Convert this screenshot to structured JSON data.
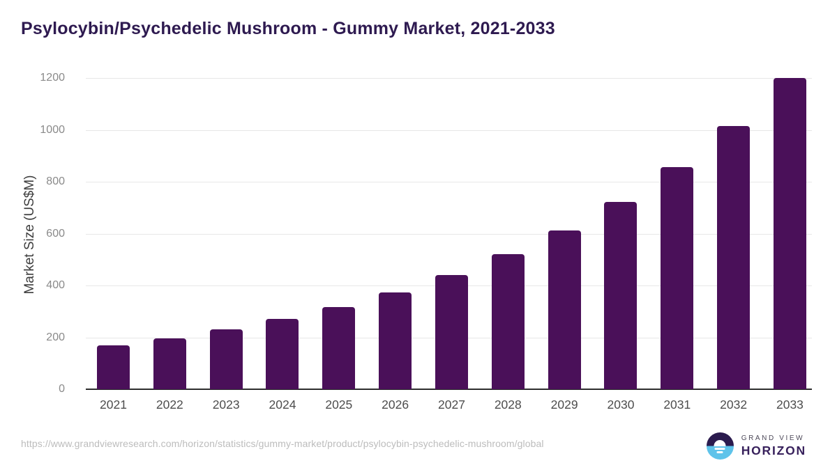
{
  "title": "Psylocybin/Psychedelic Mushroom - Gummy Market, 2021-2033",
  "chart_data": {
    "type": "bar",
    "categories": [
      "2021",
      "2022",
      "2023",
      "2024",
      "2025",
      "2026",
      "2027",
      "2028",
      "2029",
      "2030",
      "2031",
      "2032",
      "2033"
    ],
    "values": [
      170,
      196,
      231,
      272,
      318,
      374,
      441,
      520,
      613,
      723,
      856,
      1014,
      1200
    ],
    "title": "Psylocybin/Psychedelic Mushroom - Gummy Market, 2021-2033",
    "xlabel": "",
    "ylabel": "Market Size (US$M)",
    "ylim": [
      0,
      1200
    ],
    "ytick_step": 200,
    "grid": true,
    "legend": "none",
    "bar_color": "#4a1059"
  },
  "colors": {
    "title": "#2e1a50",
    "bar": "#4a1059",
    "axis_line": "#2d2d2d",
    "gridline": "#e7e7e7",
    "y_tick": "#8a8a8a",
    "x_tick": "#4d4d4d",
    "y_axis_title": "#3d3d3d",
    "source_url": "#bcbcbc",
    "logo_purple": "#2b1b4e",
    "logo_blue": "#5ec3ea",
    "brand_gray": "#4c4858",
    "brand_purple": "#38215c"
  },
  "footer": {
    "source_url": "https://www.grandviewresearch.com/horizon/statistics/gummy-market/product/psylocybin-psychedelic-mushroom/global",
    "brand": {
      "line1": "GRAND VIEW",
      "line2": "HORIZON",
      "logo_icon": "sunset-horizon-circle-icon"
    }
  }
}
